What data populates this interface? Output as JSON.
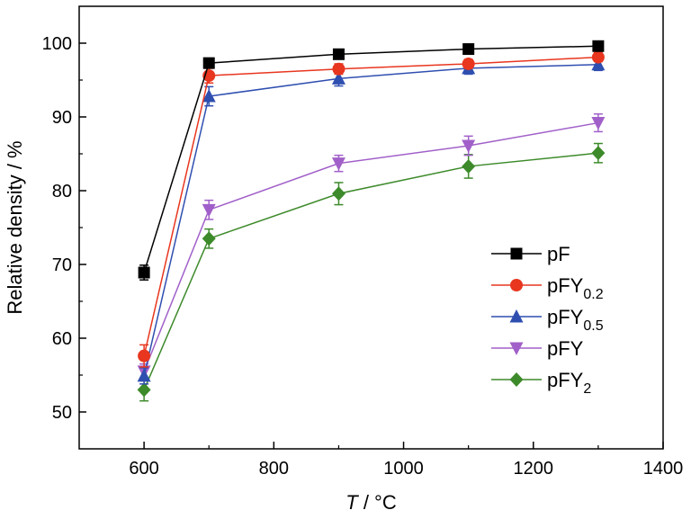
{
  "chart_data": {
    "type": "line",
    "xlabel_italic": "T",
    "xlabel_unit": " / °C",
    "ylabel": "Relative density / %",
    "xlim": [
      500,
      1400
    ],
    "ylim": [
      45,
      105
    ],
    "xticks": [
      600,
      800,
      1000,
      1200,
      1400
    ],
    "yticks": [
      50,
      60,
      70,
      80,
      90,
      100
    ],
    "grid": false,
    "legend_position": "bottom-right",
    "x": [
      600,
      700,
      900,
      1100,
      1300
    ],
    "series": [
      {
        "name": "pF",
        "name_base": "pF",
        "name_sub": "",
        "marker": "square",
        "color": "#000000",
        "values": [
          68.9,
          97.3,
          98.5,
          99.2,
          99.6
        ],
        "errors": [
          1.0,
          0.6,
          0.5,
          0.4,
          0.4
        ]
      },
      {
        "name": "pFY0.2",
        "name_base": "pFY",
        "name_sub": "0.2",
        "marker": "circle",
        "color": "#e8361f",
        "values": [
          57.6,
          95.6,
          96.5,
          97.2,
          98.1
        ],
        "errors": [
          1.5,
          1.0,
          0.7,
          0.6,
          0.6
        ]
      },
      {
        "name": "pFY0.5",
        "name_base": "pFY",
        "name_sub": "0.5",
        "marker": "triangle-up",
        "color": "#2f4fb0",
        "values": [
          54.9,
          92.8,
          95.2,
          96.6,
          97.1
        ],
        "errors": [
          1.1,
          1.3,
          1.0,
          0.8,
          0.8
        ]
      },
      {
        "name": "pFY",
        "name_base": "pFY",
        "name_sub": "",
        "marker": "triangle-down",
        "color": "#a160c9",
        "values": [
          55.5,
          77.4,
          83.7,
          86.1,
          89.2
        ],
        "errors": [
          1.0,
          1.3,
          1.1,
          1.3,
          1.2
        ]
      },
      {
        "name": "pFY2",
        "name_base": "pFY",
        "name_sub": "2",
        "marker": "diamond",
        "color": "#3d8a2a",
        "values": [
          53.0,
          73.5,
          79.6,
          83.3,
          85.1
        ],
        "errors": [
          1.5,
          1.3,
          1.5,
          1.6,
          1.3
        ]
      }
    ]
  }
}
